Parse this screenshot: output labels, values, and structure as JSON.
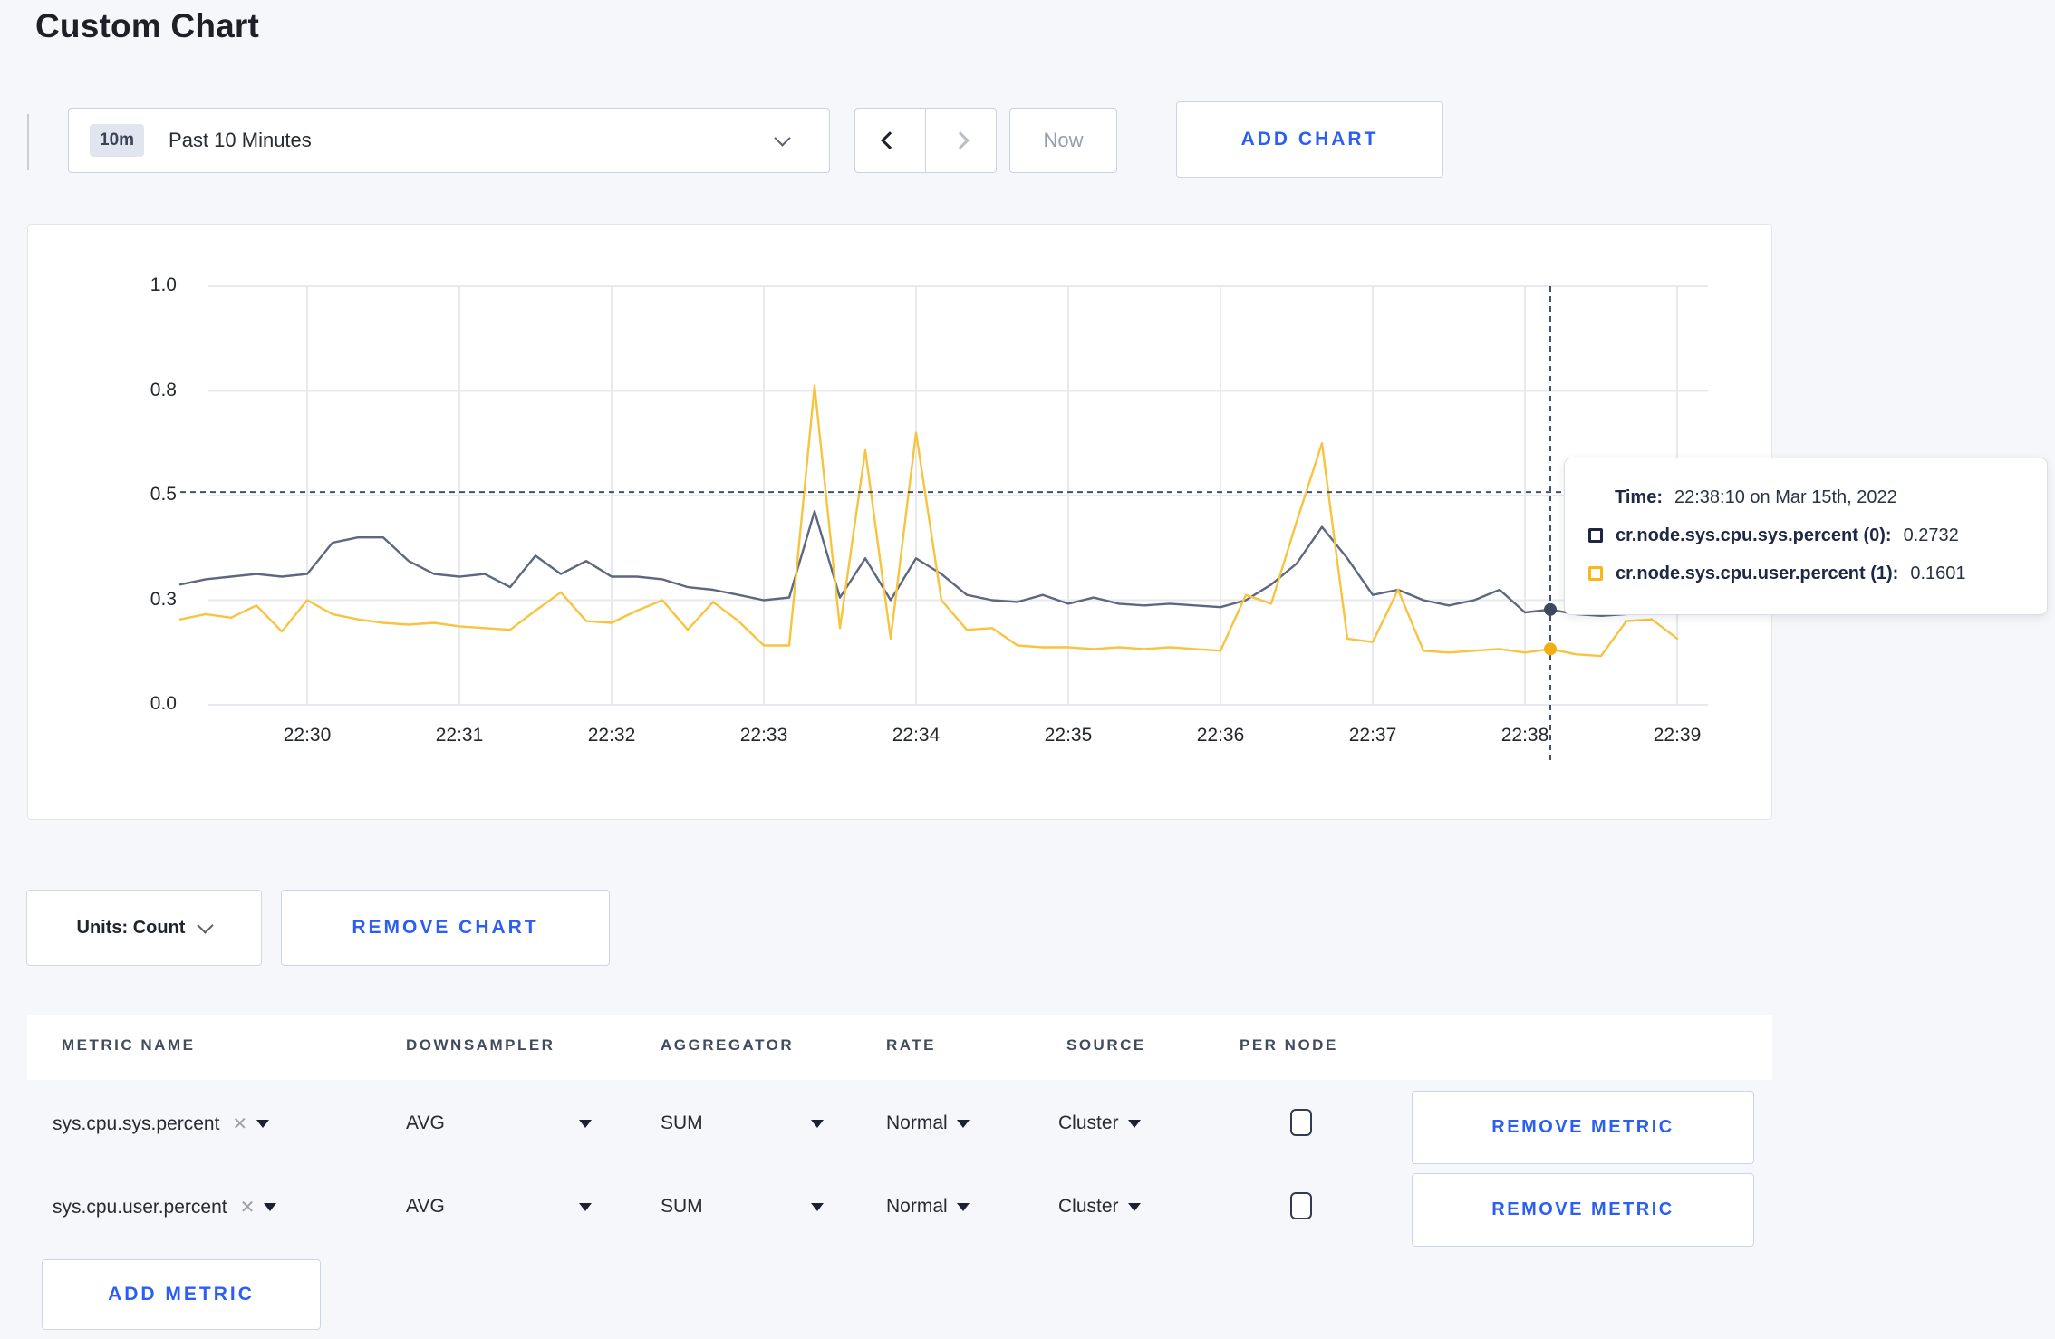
{
  "page": {
    "title": "Custom Chart"
  },
  "colors": {
    "accent": "#2A5EF5",
    "series_sys_line": "#5D6880",
    "series_user_line": "#F7C440",
    "legend_sys": "#1D2743",
    "legend_user": "#FDB713",
    "dot_sys": "#3D475F",
    "dot_user": "#F0AF14",
    "gridline": "#e8e9ee",
    "crosshair": "#44506e"
  },
  "toolbar": {
    "time_badge": "10m",
    "time_label": "Past 10 Minutes",
    "now_label": "Now",
    "add_chart_label": "ADD CHART"
  },
  "chart_controls": {
    "units_label": "Units: Count",
    "remove_chart_label": "REMOVE CHART",
    "add_metric_label": "ADD METRIC"
  },
  "tooltip": {
    "time_label": "Time:",
    "time_value": "22:38:10 on Mar 15th, 2022",
    "rows": [
      {
        "label": "cr.node.sys.cpu.sys.percent (0):",
        "value": "0.2732"
      },
      {
        "label": "cr.node.sys.cpu.user.percent (1):",
        "value": "0.1601"
      }
    ]
  },
  "table": {
    "columns": [
      "METRIC NAME",
      "DOWNSAMPLER",
      "AGGREGATOR",
      "RATE",
      "SOURCE",
      "PER NODE"
    ],
    "rows": [
      {
        "metric": "sys.cpu.sys.percent",
        "downsampler": "AVG",
        "aggregator": "SUM",
        "rate": "Normal",
        "source": "Cluster",
        "per_node_checked": false,
        "remove_label": "REMOVE METRIC"
      },
      {
        "metric": "sys.cpu.user.percent",
        "downsampler": "AVG",
        "aggregator": "SUM",
        "rate": "Normal",
        "source": "Cluster",
        "per_node_checked": false,
        "remove_label": "REMOVE METRIC"
      }
    ]
  },
  "chart_data": {
    "type": "line",
    "title": "",
    "x_start": "22:29:10",
    "x_interval_seconds": 10,
    "x_ticks": [
      "22:30",
      "22:31",
      "22:32",
      "22:33",
      "22:34",
      "22:35",
      "22:36",
      "22:37",
      "22:38",
      "22:39"
    ],
    "y_ticks": [
      0.0,
      0.3,
      0.5,
      0.8,
      1.0
    ],
    "ylim": [
      0,
      1
    ],
    "grid": true,
    "legend_position": "tooltip",
    "series": [
      {
        "name": "cr.node.sys.cpu.sys.percent (0)",
        "values": [
          0.33,
          0.34,
          0.345,
          0.35,
          0.345,
          0.35,
          0.41,
          0.42,
          0.42,
          0.375,
          0.35,
          0.345,
          0.35,
          0.325,
          0.385,
          0.35,
          0.375,
          0.345,
          0.345,
          0.34,
          0.325,
          0.32,
          0.31,
          0.3,
          0.305,
          0.47,
          0.305,
          0.38,
          0.3,
          0.38,
          0.35,
          0.31,
          0.3,
          0.295,
          0.31,
          0.29,
          0.305,
          0.29,
          0.285,
          0.29,
          0.285,
          0.28,
          0.3,
          0.33,
          0.37,
          0.44,
          0.38,
          0.31,
          0.32,
          0.3,
          0.285,
          0.3,
          0.32,
          0.265,
          0.2732,
          0.26,
          0.255,
          0.26,
          0.27,
          0.275
        ]
      },
      {
        "name": "cr.node.sys.cpu.user.percent (1)",
        "values": [
          0.245,
          0.26,
          0.25,
          0.285,
          0.21,
          0.3,
          0.26,
          0.245,
          0.235,
          0.23,
          0.235,
          0.225,
          0.22,
          0.215,
          0.27,
          0.315,
          0.24,
          0.235,
          0.27,
          0.3,
          0.215,
          0.295,
          0.24,
          0.17,
          0.17,
          0.81,
          0.22,
          0.63,
          0.19,
          0.68,
          0.3,
          0.215,
          0.22,
          0.17,
          0.165,
          0.165,
          0.16,
          0.165,
          0.16,
          0.165,
          0.16,
          0.155,
          0.31,
          0.29,
          0.45,
          0.65,
          0.19,
          0.18,
          0.32,
          0.155,
          0.15,
          0.155,
          0.16,
          0.15,
          0.1601,
          0.145,
          0.14,
          0.24,
          0.245,
          0.19
        ]
      }
    ],
    "hover": {
      "index": 54,
      "time": "22:38:10 on Mar 15th, 2022",
      "values": [
        0.2732,
        0.1601
      ],
      "crosshair_y": 0.51
    }
  }
}
